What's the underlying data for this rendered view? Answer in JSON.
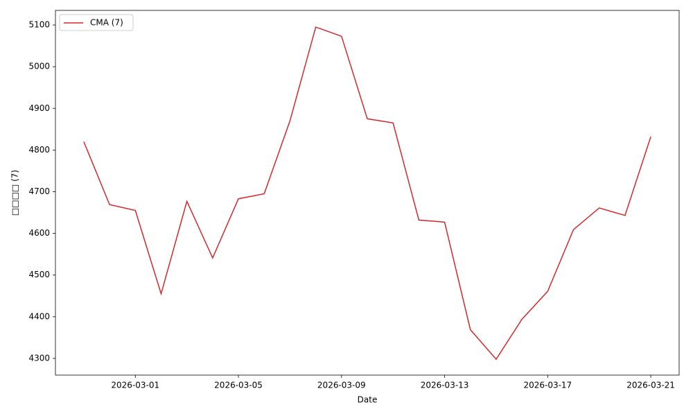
{
  "chart_data": {
    "type": "line",
    "x_label": "Date",
    "y_label": "□□□□ (7)",
    "x": [
      "2026-02-27",
      "2026-02-28",
      "2026-03-01",
      "2026-03-02",
      "2026-03-03",
      "2026-03-04",
      "2026-03-05",
      "2026-03-06",
      "2026-03-07",
      "2026-03-08",
      "2026-03-09",
      "2026-03-10",
      "2026-03-11",
      "2026-03-12",
      "2026-03-13",
      "2026-03-14",
      "2026-03-15",
      "2026-03-16",
      "2026-03-17",
      "2026-03-18",
      "2026-03-19",
      "2026-03-20",
      "2026-03-21"
    ],
    "series": [
      {
        "name": "CMA (7)",
        "color": "#d62728",
        "values": [
          4820,
          4669,
          4655,
          4455,
          4677,
          4541,
          4683,
          4695,
          4870,
          5095,
          5073,
          4875,
          4865,
          4632,
          4627,
          4369,
          4298,
          4394,
          4461,
          4609,
          4661,
          4643,
          4832
        ]
      }
    ],
    "xlim": [
      "2026-02-25T21:36",
      "2026-03-22T02:24"
    ],
    "xticks": [
      "2026-03-01",
      "2026-03-05",
      "2026-03-09",
      "2026-03-13",
      "2026-03-17",
      "2026-03-21"
    ],
    "ylim": [
      4260,
      5135
    ],
    "yticks": [
      4300,
      4400,
      4500,
      4600,
      4700,
      4800,
      4900,
      5000,
      5100
    ],
    "grid": false,
    "legend": "upper left"
  }
}
